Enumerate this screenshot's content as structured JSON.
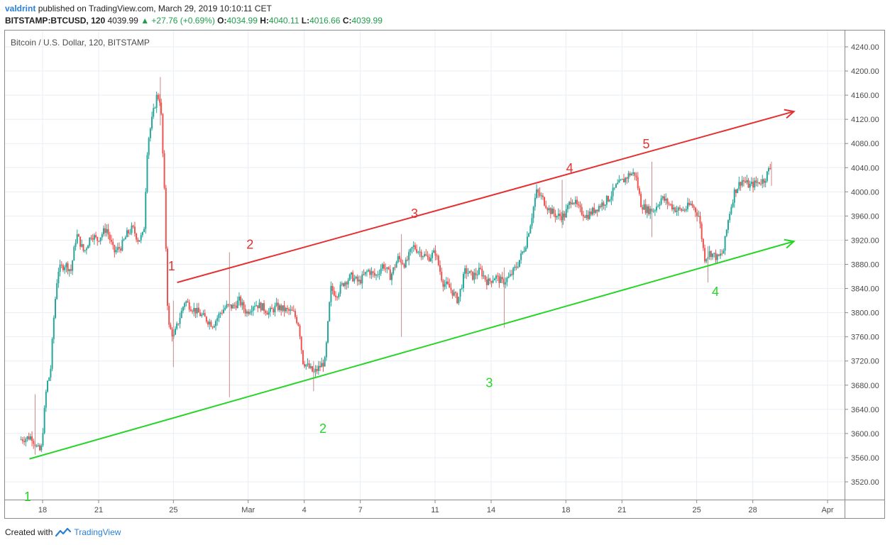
{
  "header": {
    "user": "valdrint",
    "published_text": "published on TradingView.com, March 29, 2019 10:10:11 CET",
    "symbol": "BITSTAMP:BTCUSD, 120",
    "last": "4039.99",
    "change": "▲ +27.76 (+0.69%)",
    "o_label": "O:",
    "o": "4034.99",
    "h_label": "H:",
    "h": "4040.11",
    "l_label": "L:",
    "l": "4016.66",
    "c_label": "C:",
    "c": "4039.99"
  },
  "chart_title": "Bitcoin / U.S. Dollar, 120, BITSTAMP",
  "footer": {
    "created_with": "Created with",
    "brand": "TradingView"
  },
  "colors": {
    "up": "#26a69a",
    "down": "#ef5350",
    "resistance": "#e53030",
    "support": "#27d427",
    "grid": "#e8eef4"
  },
  "chart_data": {
    "type": "candlestick",
    "title": "Bitcoin / U.S. Dollar, 120, BITSTAMP",
    "xlabel": "",
    "ylabel": "",
    "ylim": [
      3500,
      4260
    ],
    "y_ticks": [
      "4240.00",
      "4200.00",
      "4160.00",
      "4120.00",
      "4080.00",
      "4040.00",
      "4000.00",
      "3960.00",
      "3920.00",
      "3880.00",
      "3840.00",
      "3800.00",
      "3760.00",
      "3720.00",
      "3680.00",
      "3640.00",
      "3600.00",
      "3560.00",
      "3520.00"
    ],
    "x_ticks": [
      {
        "label": "18",
        "day": 18.0
      },
      {
        "label": "21",
        "day": 21.0
      },
      {
        "label": "25",
        "day": 25.0
      },
      {
        "label": "Mar",
        "day": 29.0
      },
      {
        "label": "4",
        "day": 32.0
      },
      {
        "label": "7",
        "day": 35.0
      },
      {
        "label": "11",
        "day": 39.0
      },
      {
        "label": "14",
        "day": 42.0
      },
      {
        "label": "18",
        "day": 46.0
      },
      {
        "label": "21",
        "day": 49.0
      },
      {
        "label": "25",
        "day": 53.0
      },
      {
        "label": "28",
        "day": 56.0
      },
      {
        "label": "Apr",
        "day": 60.0
      }
    ],
    "price_path": [
      [
        16.9,
        3590
      ],
      [
        17.5,
        3595
      ],
      [
        17.8,
        3575
      ],
      [
        18.0,
        3570
      ],
      [
        18.3,
        3680
      ],
      [
        18.5,
        3700
      ],
      [
        18.7,
        3800
      ],
      [
        18.9,
        3870
      ],
      [
        19.3,
        3880
      ],
      [
        19.6,
        3870
      ],
      [
        19.9,
        3930
      ],
      [
        20.3,
        3900
      ],
      [
        20.7,
        3930
      ],
      [
        21.0,
        3920
      ],
      [
        21.5,
        3940
      ],
      [
        21.9,
        3900
      ],
      [
        22.3,
        3910
      ],
      [
        22.6,
        3930
      ],
      [
        22.9,
        3940
      ],
      [
        23.2,
        3920
      ],
      [
        23.5,
        3930
      ],
      [
        23.7,
        4080
      ],
      [
        24.0,
        4130
      ],
      [
        24.2,
        4160
      ],
      [
        24.4,
        4150
      ],
      [
        24.6,
        4000
      ],
      [
        24.8,
        3780
      ],
      [
        25.1,
        3760
      ],
      [
        25.4,
        3790
      ],
      [
        25.7,
        3820
      ],
      [
        26.0,
        3810
      ],
      [
        26.4,
        3800
      ],
      [
        26.8,
        3790
      ],
      [
        27.2,
        3780
      ],
      [
        27.6,
        3800
      ],
      [
        27.9,
        3810
      ],
      [
        28.3,
        3810
      ],
      [
        28.6,
        3820
      ],
      [
        29.0,
        3800
      ],
      [
        29.4,
        3815
      ],
      [
        29.8,
        3810
      ],
      [
        30.2,
        3800
      ],
      [
        30.6,
        3810
      ],
      [
        31.0,
        3805
      ],
      [
        31.5,
        3800
      ],
      [
        31.8,
        3780
      ],
      [
        32.0,
        3720
      ],
      [
        32.3,
        3710
      ],
      [
        32.6,
        3700
      ],
      [
        32.9,
        3710
      ],
      [
        33.2,
        3720
      ],
      [
        33.5,
        3840
      ],
      [
        33.8,
        3830
      ],
      [
        34.2,
        3850
      ],
      [
        34.6,
        3860
      ],
      [
        35.0,
        3850
      ],
      [
        35.5,
        3870
      ],
      [
        35.9,
        3860
      ],
      [
        36.3,
        3880
      ],
      [
        36.7,
        3860
      ],
      [
        37.1,
        3890
      ],
      [
        37.5,
        3880
      ],
      [
        37.9,
        3910
      ],
      [
        38.3,
        3900
      ],
      [
        38.7,
        3890
      ],
      [
        39.1,
        3900
      ],
      [
        39.5,
        3850
      ],
      [
        39.9,
        3840
      ],
      [
        40.3,
        3820
      ],
      [
        40.7,
        3870
      ],
      [
        41.1,
        3860
      ],
      [
        41.5,
        3870
      ],
      [
        41.9,
        3850
      ],
      [
        42.3,
        3860
      ],
      [
        42.7,
        3850
      ],
      [
        43.1,
        3860
      ],
      [
        43.5,
        3880
      ],
      [
        43.9,
        3910
      ],
      [
        44.2,
        3950
      ],
      [
        44.5,
        4000
      ],
      [
        44.8,
        3990
      ],
      [
        45.2,
        3970
      ],
      [
        45.6,
        3960
      ],
      [
        46.0,
        3960
      ],
      [
        46.4,
        3990
      ],
      [
        46.8,
        3970
      ],
      [
        47.2,
        3960
      ],
      [
        47.6,
        3970
      ],
      [
        48.0,
        3980
      ],
      [
        48.4,
        3990
      ],
      [
        48.8,
        4010
      ],
      [
        49.2,
        4020
      ],
      [
        49.5,
        4030
      ],
      [
        49.8,
        4030
      ],
      [
        50.1,
        3980
      ],
      [
        50.4,
        3970
      ],
      [
        50.8,
        3970
      ],
      [
        51.2,
        3990
      ],
      [
        51.6,
        3980
      ],
      [
        52.0,
        3970
      ],
      [
        52.4,
        3970
      ],
      [
        52.8,
        3980
      ],
      [
        53.2,
        3960
      ],
      [
        53.5,
        3890
      ],
      [
        53.8,
        3900
      ],
      [
        54.2,
        3890
      ],
      [
        54.5,
        3900
      ],
      [
        54.8,
        3960
      ],
      [
        55.1,
        4000
      ],
      [
        55.5,
        4020
      ],
      [
        55.9,
        4010
      ],
      [
        56.3,
        4015
      ],
      [
        56.7,
        4020
      ],
      [
        57.0,
        4040
      ]
    ],
    "notable_wicks": [
      [
        17.6,
        3665,
        3565
      ],
      [
        24.3,
        4190,
        4110
      ],
      [
        25.0,
        3820,
        3710
      ],
      [
        28.0,
        3900,
        3660
      ],
      [
        32.5,
        3720,
        3670
      ],
      [
        37.2,
        3930,
        3760
      ],
      [
        42.7,
        3875,
        3775
      ],
      [
        45.8,
        4020,
        3940
      ],
      [
        50.6,
        4050,
        3925
      ],
      [
        53.6,
        3910,
        3850
      ],
      [
        57.0,
        4050,
        4010
      ]
    ],
    "resistance_line": {
      "from": [
        25.2,
        3850
      ],
      "to": [
        58.2,
        4133
      ]
    },
    "support_line": {
      "from": [
        17.3,
        3558
      ],
      "to": [
        58.2,
        3918
      ]
    },
    "annotations": [
      {
        "text": "1",
        "day": 24.9,
        "price": 3870,
        "line": "resistance"
      },
      {
        "text": "2",
        "day": 29.1,
        "price": 3906,
        "line": "resistance"
      },
      {
        "text": "3",
        "day": 37.9,
        "price": 3957,
        "line": "resistance"
      },
      {
        "text": "4",
        "day": 46.2,
        "price": 4032,
        "line": "resistance"
      },
      {
        "text": "5",
        "day": 50.3,
        "price": 4072,
        "line": "resistance"
      },
      {
        "text": "1",
        "day": 17.2,
        "price": 3488,
        "line": "support"
      },
      {
        "text": "2",
        "day": 33.0,
        "price": 3601,
        "line": "support"
      },
      {
        "text": "3",
        "day": 41.9,
        "price": 3677,
        "line": "support"
      },
      {
        "text": "4",
        "day": 54.0,
        "price": 3828,
        "line": "support"
      }
    ]
  }
}
